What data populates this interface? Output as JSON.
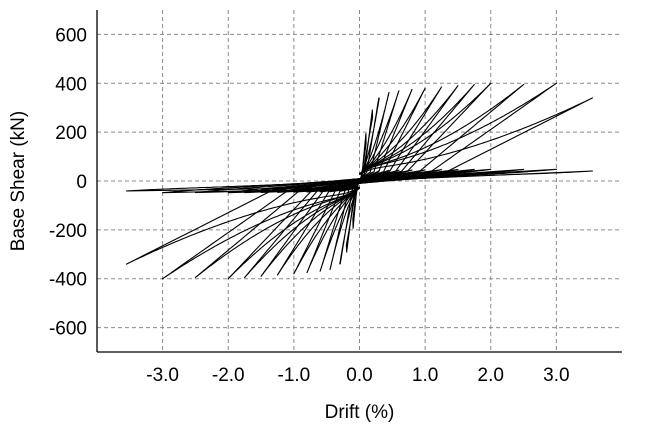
{
  "chart_data": {
    "type": "line",
    "title": "",
    "xlabel": "Drift (%)",
    "ylabel": "Base Shear (kN)",
    "xlim": [
      -4.0,
      4.0
    ],
    "ylim": [
      -700,
      700
    ],
    "x_ticks": [
      -3.0,
      -2.0,
      -1.0,
      0.0,
      1.0,
      2.0,
      3.0
    ],
    "x_tick_labels": [
      "-3.0",
      "-2.0",
      "-1.0",
      "0.0",
      "1.0",
      "2.0",
      "3.0"
    ],
    "y_ticks": [
      -600,
      -400,
      -200,
      0,
      200,
      400,
      600
    ],
    "y_tick_labels": [
      "-600",
      "-400",
      "-200",
      "0",
      "200",
      "400",
      "600"
    ],
    "x_grid": [
      -3.0,
      -2.0,
      -1.0,
      0.0,
      1.0,
      2.0,
      3.0
    ],
    "y_grid": [
      -600,
      -400,
      -200,
      0,
      200,
      400,
      600
    ],
    "grid": true,
    "grid_style": "dashed",
    "line_color": "#000000",
    "grid_color": "#8a8a8a",
    "series": [
      {
        "values": [
          {
            "peak_drift": 0.1,
            "peak_shear": 200
          },
          {
            "peak_drift": 0.2,
            "peak_shear": 300
          },
          {
            "peak_drift": 0.3,
            "peak_shear": 350
          },
          {
            "peak_drift": 0.45,
            "peak_shear": 365
          },
          {
            "peak_drift": 0.6,
            "peak_shear": 370
          },
          {
            "peak_drift": 0.8,
            "peak_shear": 375
          },
          {
            "peak_drift": 1.0,
            "peak_shear": 380
          },
          {
            "peak_drift": 1.25,
            "peak_shear": 385
          },
          {
            "peak_drift": 1.5,
            "peak_shear": 390
          },
          {
            "peak_drift": 1.75,
            "peak_shear": 395
          },
          {
            "peak_drift": 2.0,
            "peak_shear": 400
          },
          {
            "peak_drift": 2.5,
            "peak_shear": 395
          },
          {
            "peak_drift": 3.0,
            "peak_shear": 400
          },
          {
            "peak_drift": 3.55,
            "peak_shear": 340
          }
        ]
      }
    ]
  }
}
